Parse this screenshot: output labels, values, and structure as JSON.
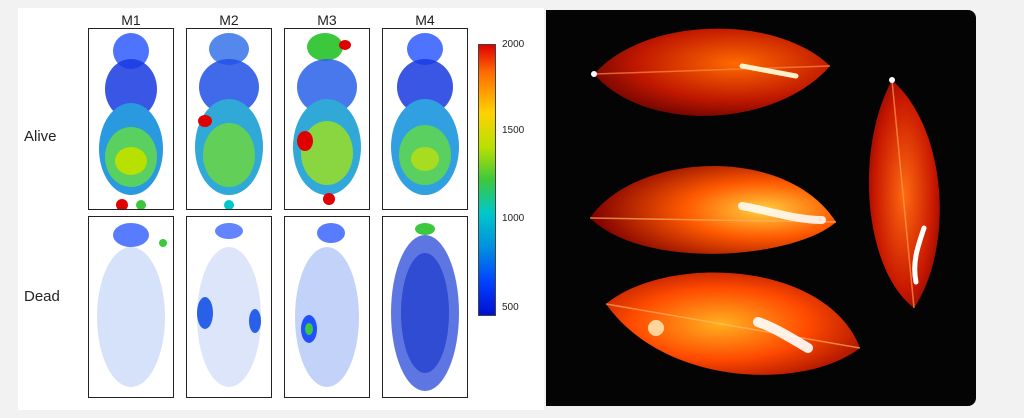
{
  "figure": {
    "columns": [
      "M1",
      "M2",
      "M3",
      "M4"
    ],
    "rows": [
      "Alive",
      "Dead"
    ],
    "colorbar": {
      "ticks": [
        "2000",
        "1500",
        "1000",
        "500"
      ],
      "colormap": [
        "#e00000",
        "#ff6a00",
        "#ffd200",
        "#b8e000",
        "#3cc83c",
        "#00c8c8",
        "#0090e0",
        "#0040ff",
        "#0010d0"
      ]
    },
    "right_panel": {
      "background": "#040404",
      "leaf_count": 4,
      "leaf_colors": [
        "#7a0000",
        "#d22000",
        "#ff6a00",
        "#ffd040",
        "#ffffff"
      ]
    }
  }
}
